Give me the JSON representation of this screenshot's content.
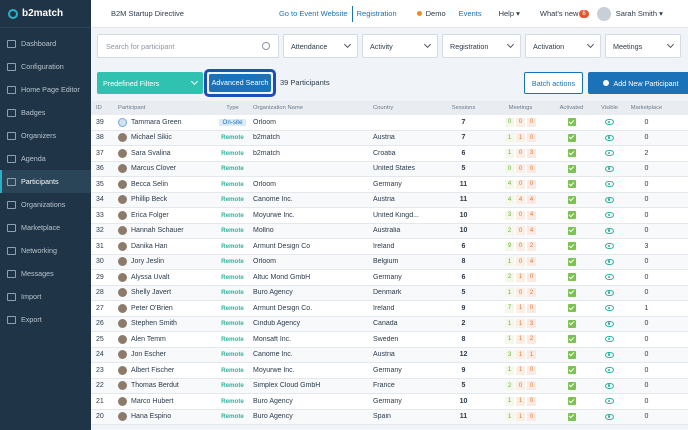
{
  "app": {
    "logo": "b2match",
    "event_name": "B2M Startup Directive"
  },
  "topbar": {
    "goto_event": "Go to Event Website",
    "registration": "Registration",
    "demo": "Demo",
    "events": "Events",
    "help": "Help",
    "whats_new": "What's new",
    "whats_new_badge": "6",
    "user_name": "Sarah Smith"
  },
  "sidebar": {
    "items": [
      {
        "label": "Dashboard",
        "icon": "dashboard-icon"
      },
      {
        "label": "Configuration",
        "icon": "gear-icon"
      },
      {
        "label": "Home Page Editor",
        "icon": "home-icon"
      },
      {
        "label": "Badges",
        "icon": "badge-icon"
      },
      {
        "label": "Organizers",
        "icon": "organizers-icon"
      },
      {
        "label": "Agenda",
        "icon": "calendar-icon"
      },
      {
        "label": "Participants",
        "icon": "participants-icon",
        "active": true
      },
      {
        "label": "Organizations",
        "icon": "organization-icon"
      },
      {
        "label": "Marketplace",
        "icon": "marketplace-icon"
      },
      {
        "label": "Networking",
        "icon": "networking-icon"
      },
      {
        "label": "Messages",
        "icon": "messages-icon"
      },
      {
        "label": "Import",
        "icon": "import-icon"
      },
      {
        "label": "Export",
        "icon": "export-icon"
      }
    ]
  },
  "filters": {
    "search_placeholder": "Search for participant",
    "attendance": "Attendance",
    "activity": "Activity",
    "registration": "Registration",
    "activation": "Activation",
    "meetings": "Meetings"
  },
  "actions": {
    "predefined": "Predefined Filters",
    "advanced": "Advanced Search",
    "count": "39 Participants",
    "batch": "Batch actions",
    "add_new": "Add New Participant"
  },
  "table": {
    "headers": {
      "id": "ID",
      "participant": "Participant",
      "type": "Type",
      "org": "Organization Name",
      "country": "Country",
      "sessions": "Sessions",
      "meetings": "Meetings",
      "activated": "Activated",
      "visible": "Visible",
      "marketplace": "Marketplace"
    },
    "rows": [
      {
        "id": "39",
        "name": "Tammara Green",
        "type": "On-site",
        "org": "Orloom",
        "country": "",
        "sessions": "7",
        "m": [
          "0",
          "0",
          "0"
        ],
        "mkt": "0"
      },
      {
        "id": "38",
        "name": "Michael Sikic",
        "type": "Remote",
        "org": "b2match",
        "country": "Austria",
        "sessions": "7",
        "m": [
          "1",
          "1",
          "0"
        ],
        "mkt": "0"
      },
      {
        "id": "37",
        "name": "Sara Svalina",
        "type": "Remote",
        "org": "b2match",
        "country": "Croatia",
        "sessions": "6",
        "m": [
          "1",
          "0",
          "3"
        ],
        "mkt": "2"
      },
      {
        "id": "36",
        "name": "Marcus Clover",
        "type": "Remote",
        "org": "",
        "country": "United States",
        "sessions": "5",
        "m": [
          "0",
          "0",
          "0"
        ],
        "mkt": "0"
      },
      {
        "id": "35",
        "name": "Becca Selin",
        "type": "Remote",
        "org": "Orloom",
        "country": "Germany",
        "sessions": "11",
        "m": [
          "4",
          "0",
          "0"
        ],
        "mkt": "0"
      },
      {
        "id": "34",
        "name": "Phillip Beck",
        "type": "Remote",
        "org": "Canome Inc.",
        "country": "Austria",
        "sessions": "11",
        "m": [
          "4",
          "4",
          "4"
        ],
        "mkt": "0"
      },
      {
        "id": "33",
        "name": "Erica Folger",
        "type": "Remote",
        "org": "Moyurwe Inc.",
        "country": "United Kingd...",
        "sessions": "10",
        "m": [
          "3",
          "0",
          "4"
        ],
        "mkt": "0"
      },
      {
        "id": "32",
        "name": "Hannah Schauer",
        "type": "Remote",
        "org": "Mollno",
        "country": "Australia",
        "sessions": "10",
        "m": [
          "2",
          "0",
          "4"
        ],
        "mkt": "0"
      },
      {
        "id": "31",
        "name": "Danika Han",
        "type": "Remote",
        "org": "Armunt Design Co",
        "country": "Ireland",
        "sessions": "6",
        "m": [
          "9",
          "0",
          "2"
        ],
        "mkt": "3"
      },
      {
        "id": "30",
        "name": "Jory Jeslin",
        "type": "Remote",
        "org": "Orloom",
        "country": "Belgium",
        "sessions": "8",
        "m": [
          "1",
          "0",
          "4"
        ],
        "mkt": "0"
      },
      {
        "id": "29",
        "name": "Alyssa Uvalt",
        "type": "Remote",
        "org": "Altuc Mond GmbH",
        "country": "Germany",
        "sessions": "6",
        "m": [
          "2",
          "1",
          "0"
        ],
        "mkt": "0"
      },
      {
        "id": "28",
        "name": "Shelly Javert",
        "type": "Remote",
        "org": "Buro Agency",
        "country": "Denmark",
        "sessions": "5",
        "m": [
          "1",
          "0",
          "2"
        ],
        "mkt": "0"
      },
      {
        "id": "27",
        "name": "Peter O'Brien",
        "type": "Remote",
        "org": "Armunt Design Co.",
        "country": "Ireland",
        "sessions": "9",
        "m": [
          "7",
          "1",
          "0"
        ],
        "mkt": "1"
      },
      {
        "id": "26",
        "name": "Stephen Smith",
        "type": "Remote",
        "org": "Cindub Agency",
        "country": "Canada",
        "sessions": "2",
        "m": [
          "1",
          "1",
          "3"
        ],
        "mkt": "0"
      },
      {
        "id": "25",
        "name": "Alen Temm",
        "type": "Remote",
        "org": "Monsaft Inc.",
        "country": "Sweden",
        "sessions": "8",
        "m": [
          "1",
          "1",
          "2"
        ],
        "mkt": "0"
      },
      {
        "id": "24",
        "name": "Jon Escher",
        "type": "Remote",
        "org": "Canome Inc.",
        "country": "Austria",
        "sessions": "12",
        "m": [
          "3",
          "1",
          "1"
        ],
        "mkt": "0"
      },
      {
        "id": "23",
        "name": "Albert Fischer",
        "type": "Remote",
        "org": "Moyurwe Inc.",
        "country": "Germany",
        "sessions": "9",
        "m": [
          "1",
          "1",
          "0"
        ],
        "mkt": "0"
      },
      {
        "id": "22",
        "name": "Thomas Berdut",
        "type": "Remote",
        "org": "Simplex Cloud GmbH",
        "country": "France",
        "sessions": "5",
        "m": [
          "2",
          "0",
          "0"
        ],
        "mkt": "0"
      },
      {
        "id": "21",
        "name": "Marco Hubert",
        "type": "Remote",
        "org": "Buro Agency",
        "country": "Germany",
        "sessions": "10",
        "m": [
          "1",
          "1",
          "0"
        ],
        "mkt": "0"
      },
      {
        "id": "20",
        "name": "Hana Espino",
        "type": "Remote",
        "org": "Buro Agency",
        "country": "Spain",
        "sessions": "11",
        "m": [
          "1",
          "1",
          "0"
        ],
        "mkt": "0"
      }
    ]
  }
}
